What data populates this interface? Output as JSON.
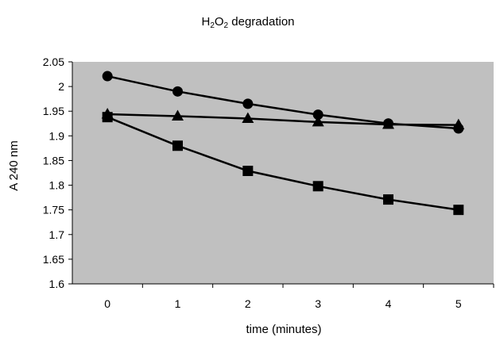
{
  "chart_data": {
    "type": "line",
    "title_parts": [
      "H",
      "2",
      "O",
      "2",
      " degradation"
    ],
    "xlabel": "time (minutes)",
    "ylabel": "A 240 nm",
    "categories": [
      "0",
      "1",
      "2",
      "3",
      "4",
      "5"
    ],
    "x": [
      0,
      1,
      2,
      3,
      4,
      5
    ],
    "ylim": [
      1.6,
      2.05
    ],
    "y_ticks": [
      "1.6",
      "1.65",
      "1.7",
      "1.75",
      "1.8",
      "1.85",
      "1.9",
      "1.95",
      "2",
      "2.05"
    ],
    "y_tick_values": [
      1.6,
      1.65,
      1.7,
      1.75,
      1.8,
      1.85,
      1.9,
      1.95,
      2.0,
      2.05
    ],
    "grid": false,
    "legend": "none",
    "plot_background": "#c0c0c0",
    "line_color": "#000000",
    "series": [
      {
        "marker": "circle",
        "values": [
          2.021,
          1.99,
          1.965,
          1.943,
          1.925,
          1.915
        ]
      },
      {
        "marker": "triangle",
        "values": [
          1.944,
          1.94,
          1.935,
          1.928,
          1.923,
          1.922
        ]
      },
      {
        "marker": "square",
        "values": [
          1.938,
          1.88,
          1.829,
          1.798,
          1.771,
          1.75
        ]
      }
    ]
  }
}
